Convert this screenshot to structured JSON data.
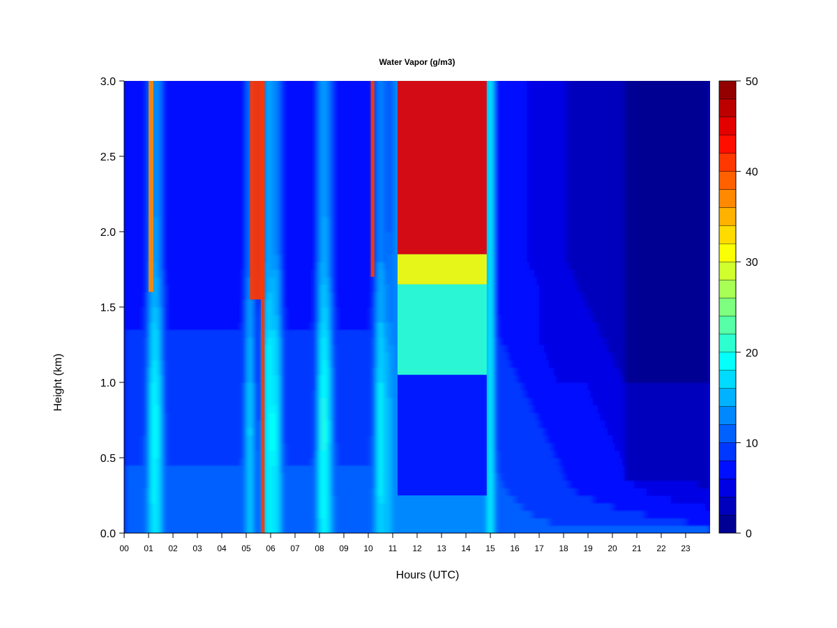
{
  "chart_data": {
    "type": "heatmap",
    "title": "Water Vapor (g/m3)",
    "xlabel": "Hours (UTC)",
    "ylabel": "Height (km)",
    "xlim": [
      0,
      24
    ],
    "ylim": [
      0.0,
      3.0
    ],
    "x_ticks": [
      "00",
      "01",
      "02",
      "03",
      "04",
      "05",
      "06",
      "07",
      "08",
      "09",
      "10",
      "11",
      "12",
      "13",
      "14",
      "15",
      "16",
      "17",
      "18",
      "19",
      "20",
      "21",
      "22",
      "23"
    ],
    "y_ticks": [
      "0.0",
      "0.5",
      "1.0",
      "1.5",
      "2.0",
      "2.5",
      "3.0"
    ],
    "colorbar": {
      "min": 0,
      "max": 50,
      "step": 2,
      "tick_labels": [
        "0",
        "10",
        "20",
        "30",
        "40",
        "50"
      ]
    },
    "features": [
      {
        "x_start": 1.0,
        "x_end": 1.2,
        "y_from": 1.6,
        "y_to": 3.0,
        "value": 36
      },
      {
        "x_start": 5.15,
        "x_end": 5.75,
        "y_from": 1.55,
        "y_to": 3.0,
        "value": 40
      },
      {
        "x_start": 5.6,
        "x_end": 5.75,
        "y_from": 0.0,
        "y_to": 3.0,
        "value": 40
      },
      {
        "x_start": 10.1,
        "x_end": 10.25,
        "y_from": 1.7,
        "y_to": 3.0,
        "value": 40
      },
      {
        "x_start": 11.2,
        "x_end": 14.85,
        "y_from": 1.85,
        "y_to": 3.0,
        "value": 44
      },
      {
        "x_start": 11.2,
        "x_end": 14.85,
        "y_from": 1.65,
        "y_to": 1.85,
        "value": 31
      },
      {
        "x_start": 11.2,
        "x_end": 14.85,
        "y_from": 1.05,
        "y_to": 1.65,
        "value": 20
      },
      {
        "x_start": 11.2,
        "x_end": 14.85,
        "y_from": 0.25,
        "y_to": 1.05,
        "value": 6
      }
    ],
    "colors": {
      "stops": [
        "#00007f",
        "#0000ff",
        "#007fff",
        "#00ffff",
        "#7fff7f",
        "#ffff00",
        "#ff7f00",
        "#ff0000",
        "#7f0000"
      ]
    }
  }
}
